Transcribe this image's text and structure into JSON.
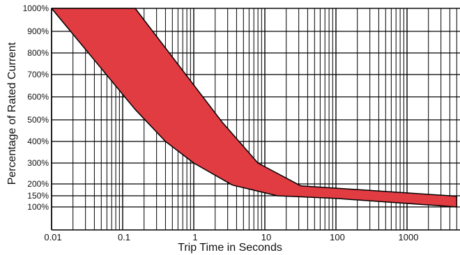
{
  "chart_data": {
    "type": "area",
    "xlabel": "Trip Time in Seconds",
    "ylabel": "Percentage of Rated Current",
    "x_scale": "log",
    "xlim": [
      0.01,
      5000
    ],
    "x_ticks": [
      {
        "value": 0.01,
        "label": "0.01"
      },
      {
        "value": 0.1,
        "label": "0.1"
      },
      {
        "value": 1,
        "label": "1"
      },
      {
        "value": 10,
        "label": "10"
      },
      {
        "value": 100,
        "label": "100"
      },
      {
        "value": 1000,
        "label": "1000"
      }
    ],
    "y_ticks": [
      {
        "value": 100,
        "label": "100%"
      },
      {
        "value": 150,
        "label": "150%"
      },
      {
        "value": 200,
        "label": "200%"
      },
      {
        "value": 300,
        "label": "300%"
      },
      {
        "value": 400,
        "label": "400%"
      },
      {
        "value": 500,
        "label": "500%"
      },
      {
        "value": 600,
        "label": "600%"
      },
      {
        "value": 700,
        "label": "700%"
      },
      {
        "value": 800,
        "label": "800%"
      },
      {
        "value": 900,
        "label": "900%"
      },
      {
        "value": 1000,
        "label": "1000%"
      }
    ],
    "grid": true,
    "band_color": "#e03c42",
    "series": [
      {
        "role": "upper",
        "points": [
          {
            "x": 0.01,
            "y": 1000
          },
          {
            "x": 0.15,
            "y": 1000
          },
          {
            "x": 2.5,
            "y": 490
          },
          {
            "x": 8,
            "y": 300
          },
          {
            "x": 32,
            "y": 192
          },
          {
            "x": 5000,
            "y": 148
          }
        ]
      },
      {
        "role": "lower",
        "points": [
          {
            "x": 0.01,
            "y": 1000
          },
          {
            "x": 0.15,
            "y": 545
          },
          {
            "x": 0.4,
            "y": 400
          },
          {
            "x": 1,
            "y": 300
          },
          {
            "x": 3.5,
            "y": 195
          },
          {
            "x": 15,
            "y": 150
          },
          {
            "x": 100,
            "y": 138
          },
          {
            "x": 5000,
            "y": 100
          }
        ]
      }
    ]
  }
}
